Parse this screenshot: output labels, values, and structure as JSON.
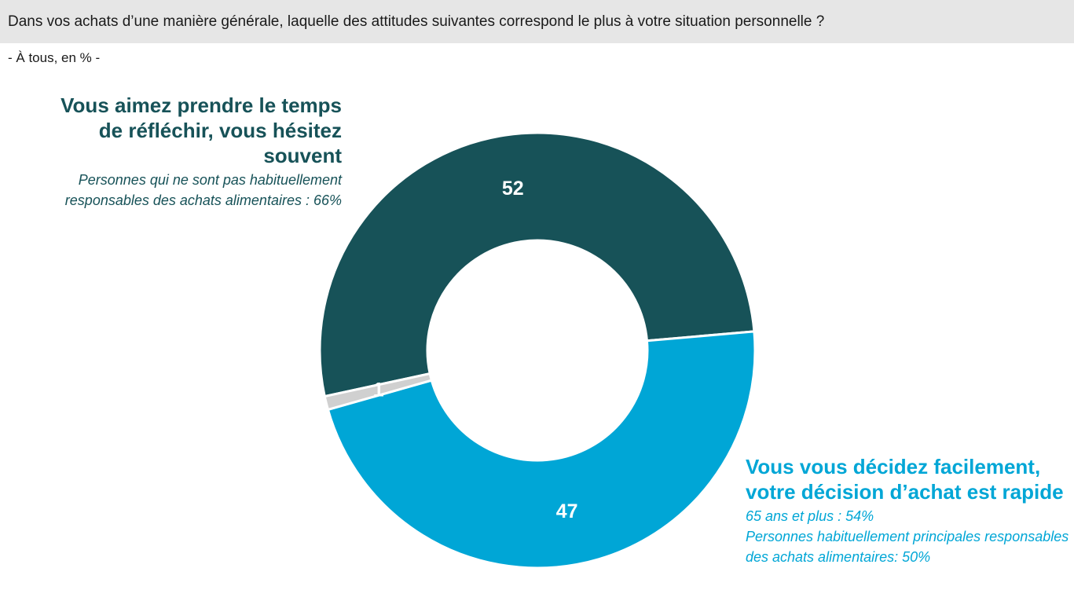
{
  "header": {
    "question": "Dans vos achats d’une manière générale, laquelle des attitudes suivantes correspond le plus à votre situation personnelle ?",
    "base": "- À tous, en % -"
  },
  "colors": {
    "dark_teal": "#175258",
    "light_blue": "#00a6d6",
    "grey": "#d0d0d0"
  },
  "chart_data": {
    "type": "pie",
    "donut": true,
    "labels": [
      "Vous aimez prendre le temps de réfléchir, vous hésitez souvent",
      "Vous vous décidez facilement, votre décision d’achat est rapide",
      ""
    ],
    "values": [
      52,
      47,
      1
    ],
    "value_labels": [
      "52",
      "47",
      "1"
    ],
    "colors": [
      "#175258",
      "#00a6d6",
      "#d0d0d0"
    ]
  },
  "annotations": {
    "left": {
      "title": "Vous aimez prendre le temps de réfléchir, vous hésitez souvent",
      "notes": [
        "Personnes qui ne sont pas habituellement responsables des achats alimentaires : 66%"
      ]
    },
    "right": {
      "title": "Vous vous décidez facilement, votre décision d’achat est rapide",
      "notes": [
        "65 ans et plus : 54%",
        "Personnes habituellement principales responsables des achats alimentaires: 50%"
      ]
    }
  }
}
